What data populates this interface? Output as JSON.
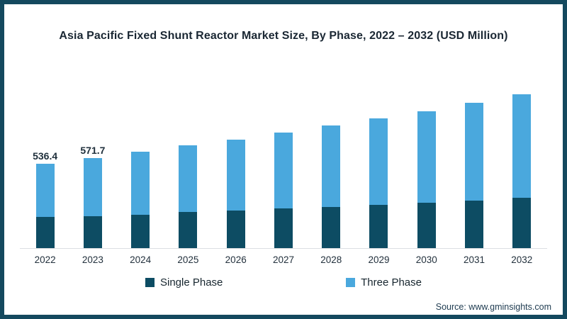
{
  "frame": {
    "border_color": "#14495e",
    "background": "#ffffff"
  },
  "title": "Asia Pacific Fixed Shunt Reactor Market Size, By Phase, 2022 – 2032 (USD Million)",
  "legend": [
    {
      "label": "Single Phase",
      "color": "#0d4c63"
    },
    {
      "label": "Three Phase",
      "color": "#4aa8dd"
    }
  ],
  "source": "Source: www.gminsights.com",
  "chart_data": {
    "type": "bar",
    "stacked": true,
    "title": "Asia Pacific Fixed Shunt Reactor Market Size, By Phase, 2022 – 2032 (USD Million)",
    "categories": [
      "2022",
      "2023",
      "2024",
      "2025",
      "2026",
      "2027",
      "2028",
      "2029",
      "2030",
      "2031",
      "2032"
    ],
    "series": [
      {
        "name": "Single Phase",
        "color": "#0d4c63",
        "values": [
          197,
          202,
          213,
          227,
          239,
          251,
          262,
          272,
          289,
          302,
          317
        ]
      },
      {
        "name": "Three Phase",
        "color": "#4aa8dd",
        "values": [
          339.4,
          369.7,
          399,
          424,
          449,
          480,
          514,
          548,
          579,
          619,
          656
        ]
      }
    ],
    "totals": [
      536.4,
      571.7,
      612,
      651,
      688,
      731,
      776,
      820,
      868,
      921,
      973
    ],
    "data_labels": [
      "536.4",
      "571.7",
      "",
      "",
      "",
      "",
      "",
      "",
      "",
      "",
      ""
    ],
    "xlabel": "",
    "ylabel": "USD Million",
    "ylim": [
      0,
      1122
    ],
    "grid": false,
    "y_axis_visible": false,
    "legend_position": "bottom"
  }
}
